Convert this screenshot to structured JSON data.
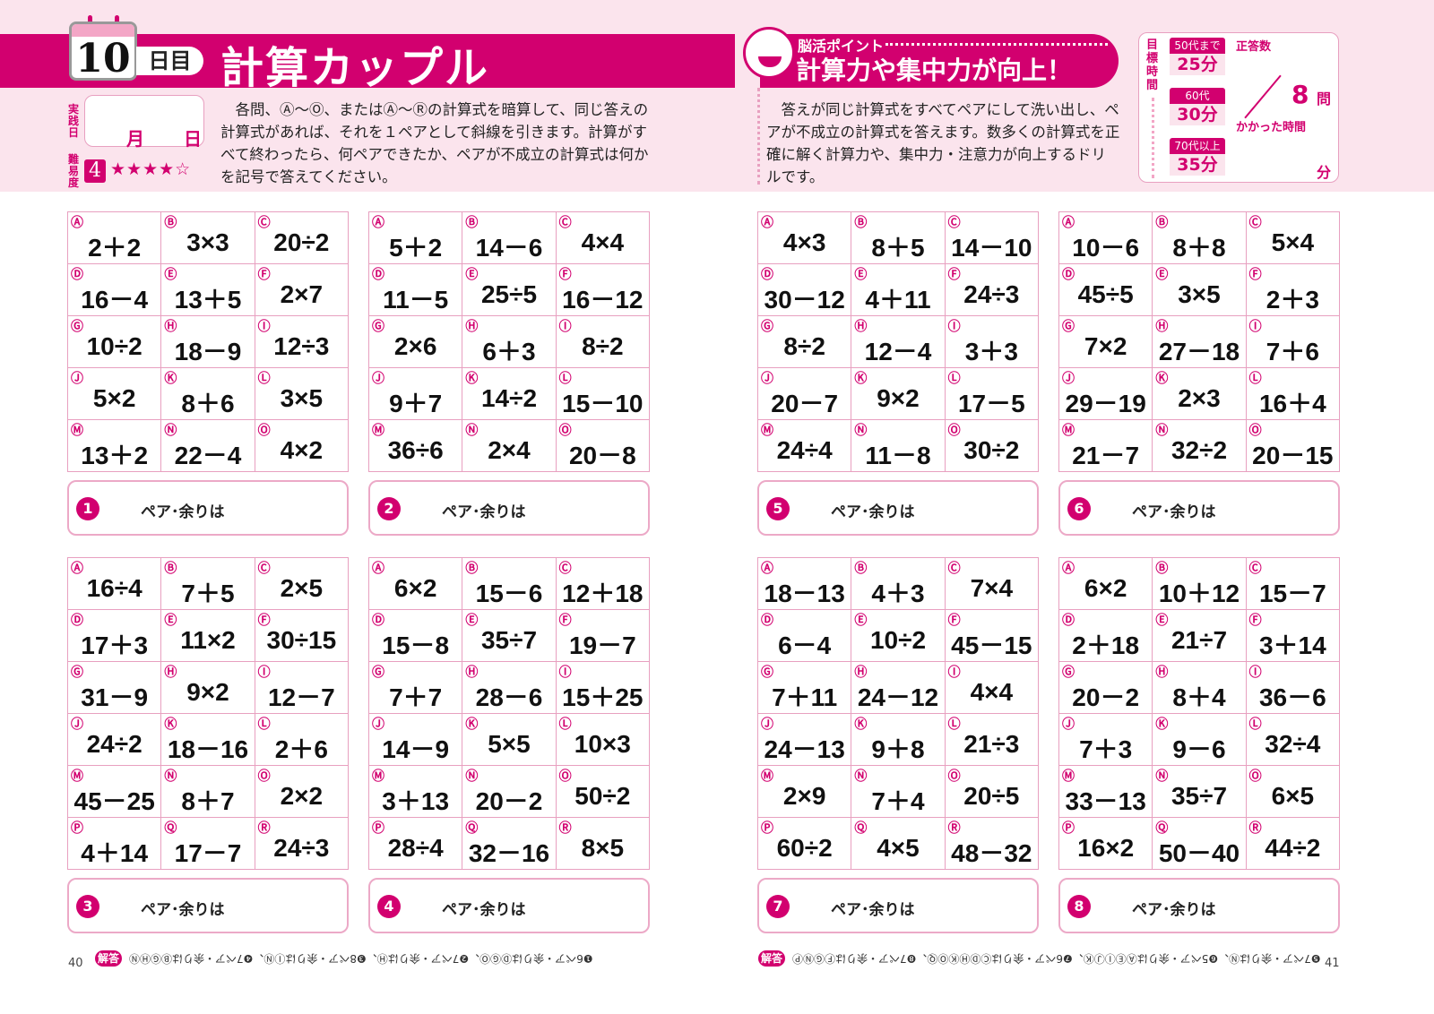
{
  "header": {
    "day": "10",
    "day_suffix": "日目",
    "title": "計算カップル",
    "practice_day_label": "実践日",
    "month": "月",
    "day_unit": "日",
    "difficulty_label": "難易度",
    "difficulty": "4",
    "stars": "★★★★☆",
    "difficulty_level": 4,
    "difficulty_max": 5,
    "instructions": "各問、Ⓐ～Ⓞ、またはⒶ～Ⓡの計算式を暗算して、同じ答えの計算式があれば、それを１ペアとして斜線を引きます。計算がすべて終わったら、何ペアできたか、ペアが不成立の計算式は何かを記号で答えてください。",
    "brain_point_label": "脳活ポイント",
    "brain_point_title": "計算力や集中力が向上！",
    "brain_point_text": "答えが同じ計算式をすべてペアにして洗い出し、ペアが不成立の計算式を答えます。数多くの計算式を正確に解く計算力や、集中力・注意力が向上するドリルです。",
    "target_label": "目標時間",
    "targets": [
      {
        "age": "50代まで",
        "time": "25分"
      },
      {
        "age": "60代",
        "time": "30分"
      },
      {
        "age": "70代以上",
        "time": "35分"
      }
    ],
    "correct_label": "正答数",
    "total": "8",
    "total_unit": "問",
    "time_taken_label": "かかった時間",
    "minute_unit": "分"
  },
  "answer_prompt": "ペア･余りは",
  "problems": [
    {
      "num": "1",
      "cells": [
        [
          "Ⓐ",
          "2＋2"
        ],
        [
          "Ⓑ",
          "3×3"
        ],
        [
          "Ⓒ",
          "20÷2"
        ],
        [
          "Ⓓ",
          "16－4"
        ],
        [
          "Ⓔ",
          "13＋5"
        ],
        [
          "Ⓕ",
          "2×7"
        ],
        [
          "Ⓖ",
          "10÷2"
        ],
        [
          "Ⓗ",
          "18－9"
        ],
        [
          "Ⓘ",
          "12÷3"
        ],
        [
          "Ⓙ",
          "5×2"
        ],
        [
          "Ⓚ",
          "8＋6"
        ],
        [
          "Ⓛ",
          "3×5"
        ],
        [
          "Ⓜ",
          "13＋2"
        ],
        [
          "Ⓝ",
          "22－4"
        ],
        [
          "Ⓞ",
          "4×2"
        ]
      ]
    },
    {
      "num": "2",
      "cells": [
        [
          "Ⓐ",
          "5＋2"
        ],
        [
          "Ⓑ",
          "14－6"
        ],
        [
          "Ⓒ",
          "4×4"
        ],
        [
          "Ⓓ",
          "11－5"
        ],
        [
          "Ⓔ",
          "25÷5"
        ],
        [
          "Ⓕ",
          "16－12"
        ],
        [
          "Ⓖ",
          "2×6"
        ],
        [
          "Ⓗ",
          "6＋3"
        ],
        [
          "Ⓘ",
          "8÷2"
        ],
        [
          "Ⓙ",
          "9＋7"
        ],
        [
          "Ⓚ",
          "14÷2"
        ],
        [
          "Ⓛ",
          "15－10"
        ],
        [
          "Ⓜ",
          "36÷6"
        ],
        [
          "Ⓝ",
          "2×4"
        ],
        [
          "Ⓞ",
          "20－8"
        ]
      ]
    },
    {
      "num": "5",
      "cells": [
        [
          "Ⓐ",
          "4×3"
        ],
        [
          "Ⓑ",
          "8＋5"
        ],
        [
          "Ⓒ",
          "14－10"
        ],
        [
          "Ⓓ",
          "30－12"
        ],
        [
          "Ⓔ",
          "4＋11"
        ],
        [
          "Ⓕ",
          "24÷3"
        ],
        [
          "Ⓖ",
          "8÷2"
        ],
        [
          "Ⓗ",
          "12－4"
        ],
        [
          "Ⓘ",
          "3＋3"
        ],
        [
          "Ⓙ",
          "20－7"
        ],
        [
          "Ⓚ",
          "9×2"
        ],
        [
          "Ⓛ",
          "17－5"
        ],
        [
          "Ⓜ",
          "24÷4"
        ],
        [
          "Ⓝ",
          "11－8"
        ],
        [
          "Ⓞ",
          "30÷2"
        ]
      ]
    },
    {
      "num": "6",
      "cells": [
        [
          "Ⓐ",
          "10－6"
        ],
        [
          "Ⓑ",
          "8＋8"
        ],
        [
          "Ⓒ",
          "5×4"
        ],
        [
          "Ⓓ",
          "45÷5"
        ],
        [
          "Ⓔ",
          "3×5"
        ],
        [
          "Ⓕ",
          "2＋3"
        ],
        [
          "Ⓖ",
          "7×2"
        ],
        [
          "Ⓗ",
          "27－18"
        ],
        [
          "Ⓘ",
          "7＋6"
        ],
        [
          "Ⓙ",
          "29－19"
        ],
        [
          "Ⓚ",
          "2×3"
        ],
        [
          "Ⓛ",
          "16＋4"
        ],
        [
          "Ⓜ",
          "21－7"
        ],
        [
          "Ⓝ",
          "32÷2"
        ],
        [
          "Ⓞ",
          "20－15"
        ]
      ]
    },
    {
      "num": "3",
      "cells": [
        [
          "Ⓐ",
          "16÷4"
        ],
        [
          "Ⓑ",
          "7＋5"
        ],
        [
          "Ⓒ",
          "2×5"
        ],
        [
          "Ⓓ",
          "17＋3"
        ],
        [
          "Ⓔ",
          "11×2"
        ],
        [
          "Ⓕ",
          "30÷15"
        ],
        [
          "Ⓖ",
          "31－9"
        ],
        [
          "Ⓗ",
          "9×2"
        ],
        [
          "Ⓘ",
          "12－7"
        ],
        [
          "Ⓙ",
          "24÷2"
        ],
        [
          "Ⓚ",
          "18－16"
        ],
        [
          "Ⓛ",
          "2＋6"
        ],
        [
          "Ⓜ",
          "45－25"
        ],
        [
          "Ⓝ",
          "8＋7"
        ],
        [
          "Ⓞ",
          "2×2"
        ],
        [
          "Ⓟ",
          "4＋14"
        ],
        [
          "Ⓠ",
          "17－7"
        ],
        [
          "Ⓡ",
          "24÷3"
        ]
      ]
    },
    {
      "num": "4",
      "cells": [
        [
          "Ⓐ",
          "6×2"
        ],
        [
          "Ⓑ",
          "15－6"
        ],
        [
          "Ⓒ",
          "12＋18"
        ],
        [
          "Ⓓ",
          "15－8"
        ],
        [
          "Ⓔ",
          "35÷7"
        ],
        [
          "Ⓕ",
          "19－7"
        ],
        [
          "Ⓖ",
          "7＋7"
        ],
        [
          "Ⓗ",
          "28－6"
        ],
        [
          "Ⓘ",
          "15＋25"
        ],
        [
          "Ⓙ",
          "14－9"
        ],
        [
          "Ⓚ",
          "5×5"
        ],
        [
          "Ⓛ",
          "10×3"
        ],
        [
          "Ⓜ",
          "3＋13"
        ],
        [
          "Ⓝ",
          "20－2"
        ],
        [
          "Ⓞ",
          "50÷2"
        ],
        [
          "Ⓟ",
          "28÷4"
        ],
        [
          "Ⓠ",
          "32－16"
        ],
        [
          "Ⓡ",
          "8×5"
        ]
      ]
    },
    {
      "num": "7",
      "cells": [
        [
          "Ⓐ",
          "18－13"
        ],
        [
          "Ⓑ",
          "4＋3"
        ],
        [
          "Ⓒ",
          "7×4"
        ],
        [
          "Ⓓ",
          "6－4"
        ],
        [
          "Ⓔ",
          "10÷2"
        ],
        [
          "Ⓕ",
          "45－15"
        ],
        [
          "Ⓖ",
          "7＋11"
        ],
        [
          "Ⓗ",
          "24－12"
        ],
        [
          "Ⓘ",
          "4×4"
        ],
        [
          "Ⓙ",
          "24－13"
        ],
        [
          "Ⓚ",
          "9＋8"
        ],
        [
          "Ⓛ",
          "21÷3"
        ],
        [
          "Ⓜ",
          "2×9"
        ],
        [
          "Ⓝ",
          "7＋4"
        ],
        [
          "Ⓞ",
          "20÷5"
        ],
        [
          "Ⓟ",
          "60÷2"
        ],
        [
          "Ⓠ",
          "4×5"
        ],
        [
          "Ⓡ",
          "48－32"
        ]
      ]
    },
    {
      "num": "8",
      "cells": [
        [
          "Ⓐ",
          "6×2"
        ],
        [
          "Ⓑ",
          "10＋12"
        ],
        [
          "Ⓒ",
          "15－7"
        ],
        [
          "Ⓓ",
          "2＋18"
        ],
        [
          "Ⓔ",
          "21÷7"
        ],
        [
          "Ⓕ",
          "3＋14"
        ],
        [
          "Ⓖ",
          "20－2"
        ],
        [
          "Ⓗ",
          "8＋4"
        ],
        [
          "Ⓘ",
          "36－6"
        ],
        [
          "Ⓙ",
          "7＋3"
        ],
        [
          "Ⓚ",
          "9－6"
        ],
        [
          "Ⓛ",
          "32÷4"
        ],
        [
          "Ⓜ",
          "33－13"
        ],
        [
          "Ⓝ",
          "35÷7"
        ],
        [
          "Ⓞ",
          "6×5"
        ],
        [
          "Ⓟ",
          "16×2"
        ],
        [
          "Ⓠ",
          "50－40"
        ],
        [
          "Ⓡ",
          "44÷2"
        ]
      ]
    }
  ],
  "footer": {
    "left_page": "40",
    "right_page": "41",
    "answer_label": "解答",
    "answers_left": "❶6ペア・余りはⒹⒼⓄ、❷7ペア・余りはⒽ、❸8ペア・余りはⒾⓃ、❹7ペア・余りはⒷⒼⒽⓃ",
    "answers_right": "❺7ペア・余りはⓃ、❻5ペア・余りはⒶⒺⒾⒿⓀ、❼6ペア・余りはⒸⒹⒽⓀⓄⓆ、❽7ペア・余りはⒻⒼⓃⓅ"
  },
  "colors": {
    "accent": "#d2006f",
    "background": "#fbe4ed",
    "grid_line": "#e8a0c0"
  }
}
